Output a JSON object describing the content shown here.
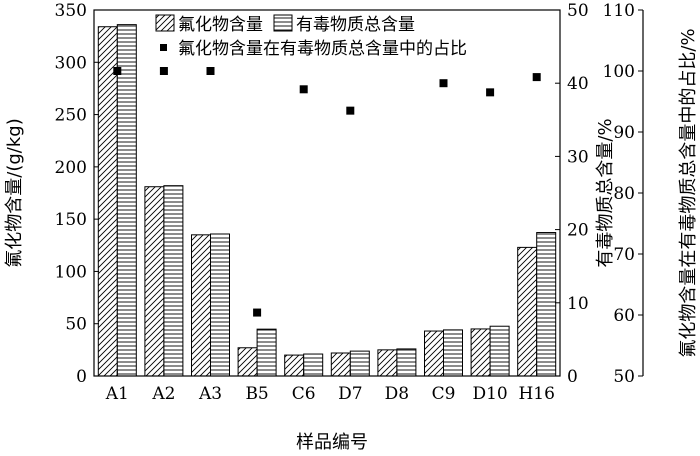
{
  "chart_data": {
    "type": "bar",
    "categories": [
      "A1",
      "A2",
      "A3",
      "B5",
      "C6",
      "D7",
      "D8",
      "C9",
      "D10",
      "H16"
    ],
    "series": [
      {
        "name": "氟化物含量",
        "axis": "left",
        "kind": "bar",
        "pattern": "diagonal",
        "values": [
          334,
          181,
          135,
          27,
          20,
          22,
          25,
          43,
          45,
          123
        ]
      },
      {
        "name": "有毒物质总含量",
        "axis": "right1",
        "kind": "bar",
        "pattern": "horizontal",
        "values": [
          48.0,
          26.0,
          19.4,
          6.4,
          3.0,
          3.4,
          3.7,
          6.3,
          6.8,
          19.6
        ]
      },
      {
        "name": "氟化物含量在有毒物质总含量中的占比",
        "axis": "right2",
        "kind": "scatter",
        "values": [
          100,
          100,
          100,
          60.4,
          97,
          93.5,
          null,
          98,
          96.5,
          99
        ]
      }
    ],
    "xlabel": "样品编号",
    "ylabel": "氟化物含量/(g/kg)",
    "y2label": "有毒物质总含量/%",
    "y3label": "氟化物含量在有毒物质总含量中的占比/%",
    "ylim": [
      0,
      350
    ],
    "y2lim": [
      0,
      50
    ],
    "y3lim": [
      50,
      110
    ],
    "yticks": [
      "0",
      "50",
      "100",
      "150",
      "200",
      "250",
      "300",
      "350"
    ],
    "y2ticks": [
      "0",
      "10",
      "20",
      "30",
      "40",
      "50"
    ],
    "y3ticks": [
      "50",
      "60",
      "70",
      "80",
      "90",
      "100",
      "110"
    ],
    "legend_position": "top-center",
    "grid": false
  }
}
